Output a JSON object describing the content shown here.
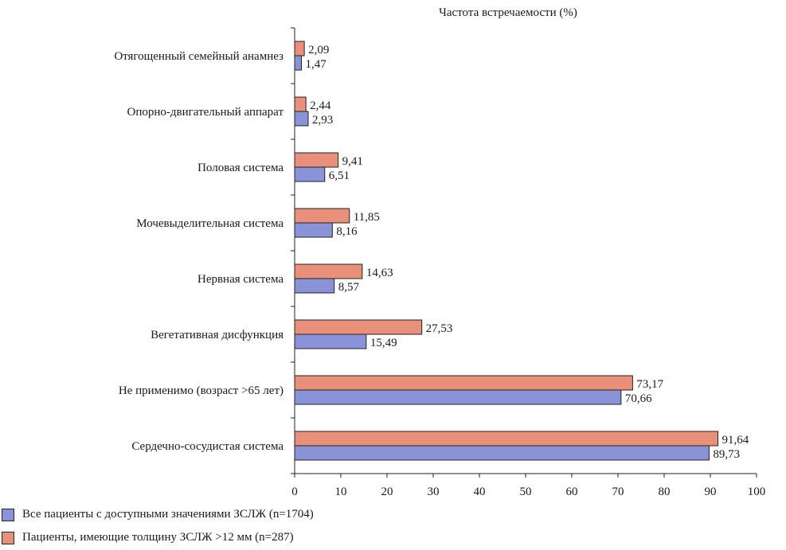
{
  "chart_data": {
    "type": "bar",
    "orientation": "horizontal",
    "title": "Частота встречаемости (%)",
    "categories": [
      "Отягощенный  семейный  анамнез",
      "Опорно-двигательный аппарат",
      "Половая система",
      "Мочевыделительная система",
      "Нервная система",
      "Вегетативная дисфункция",
      "Не применимо (возраст >65 лет)",
      "Сердечно-сосудистая система"
    ],
    "series": [
      {
        "name": "Пациенты, имеющие толщину ЗСЛЖ >12 мм (n=287)",
        "color": "#e8907a",
        "values": [
          2.09,
          2.44,
          9.41,
          11.85,
          14.63,
          27.53,
          73.17,
          91.64
        ],
        "labels": [
          "2,09",
          "2,44",
          "9,41",
          "11,85",
          "14,63",
          "27,53",
          "73,17",
          "91,64"
        ]
      },
      {
        "name": "Все пациенты с доступными значениями ЗСЛЖ (n=1704)",
        "color": "#8a93d8",
        "values": [
          1.47,
          2.93,
          6.51,
          8.16,
          8.57,
          15.49,
          70.66,
          89.73
        ],
        "labels": [
          "1,47",
          "2,93",
          "6,51",
          "8,16",
          "8,57",
          "15,49",
          "70,66",
          "89,73"
        ]
      }
    ],
    "xlim": [
      0,
      100
    ],
    "xticks": [
      "0",
      "10",
      "20",
      "30",
      "40",
      "50",
      "60",
      "70",
      "80",
      "90",
      "100"
    ],
    "legend_position": "bottom-left",
    "grid": false
  },
  "legend": [
    {
      "label": "Все пациенты с доступными значениями ЗСЛЖ (n=1704)",
      "color": "#8a93d8"
    },
    {
      "label": "Пациенты, имеющие толщину ЗСЛЖ >12 мм (n=287)",
      "color": "#e8907a"
    }
  ]
}
